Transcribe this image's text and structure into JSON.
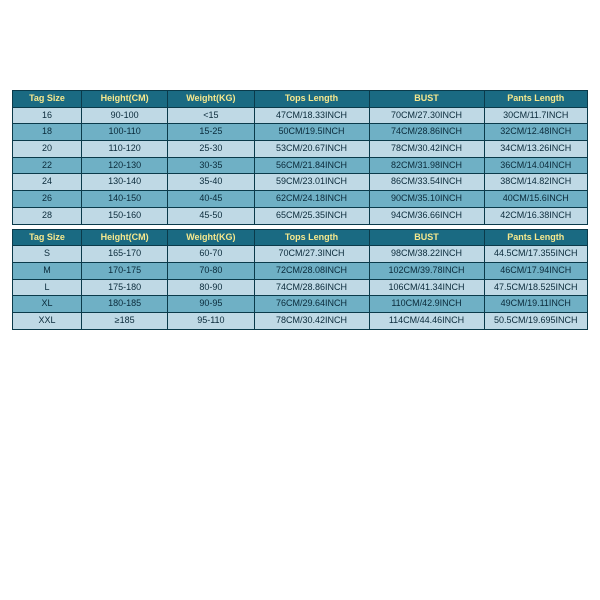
{
  "table1": {
    "headers": [
      "Tag Size",
      "Height(CM)",
      "Weight(KG)",
      "Tops Length",
      "BUST",
      "Pants Length"
    ],
    "header_colors": {
      "bg": "#1a6a82",
      "fg": "#f7e98e"
    },
    "row_light_bg": "#bfd9e5",
    "row_dark_bg": "#6fb0c5",
    "rows": [
      {
        "cells": [
          "16",
          "90-100",
          "<15",
          "47CM/18.33INCH",
          "70CM/27.30INCH",
          "30CM/11.7INCH"
        ],
        "dark": false
      },
      {
        "cells": [
          "18",
          "100-110",
          "15-25",
          "50CM/19.5INCH",
          "74CM/28.86INCH",
          "32CM/12.48INCH"
        ],
        "dark": true
      },
      {
        "cells": [
          "20",
          "110-120",
          "25-30",
          "53CM/20.67INCH",
          "78CM/30.42INCH",
          "34CM/13.26INCH"
        ],
        "dark": false
      },
      {
        "cells": [
          "22",
          "120-130",
          "30-35",
          "56CM/21.84INCH",
          "82CM/31.98INCH",
          "36CM/14.04INCH"
        ],
        "dark": true
      },
      {
        "cells": [
          "24",
          "130-140",
          "35-40",
          "59CM/23.01INCH",
          "86CM/33.54INCH",
          "38CM/14.82INCH"
        ],
        "dark": false
      },
      {
        "cells": [
          "26",
          "140-150",
          "40-45",
          "62CM/24.18INCH",
          "90CM/35.10INCH",
          "40CM/15.6INCH"
        ],
        "dark": true
      },
      {
        "cells": [
          "28",
          "150-160",
          "45-50",
          "65CM/25.35INCH",
          "94CM/36.66INCH",
          "42CM/16.38INCH"
        ],
        "dark": false
      }
    ]
  },
  "table2": {
    "headers": [
      "Tag Size",
      "Height(CM)",
      "Weight(KG)",
      "Tops Length",
      "BUST",
      "Pants Length"
    ],
    "header_colors": {
      "bg": "#1a6a82",
      "fg": "#f7e98e"
    },
    "row_light_bg": "#bfd9e5",
    "row_dark_bg": "#6fb0c5",
    "rows": [
      {
        "cells": [
          "S",
          "165-170",
          "60-70",
          "70CM/27.3INCH",
          "98CM/38.22INCH",
          "44.5CM/17.355INCH"
        ],
        "dark": false
      },
      {
        "cells": [
          "M",
          "170-175",
          "70-80",
          "72CM/28.08INCH",
          "102CM/39.78INCH",
          "46CM/17.94INCH"
        ],
        "dark": true
      },
      {
        "cells": [
          "L",
          "175-180",
          "80-90",
          "74CM/28.86INCH",
          "106CM/41.34INCH",
          "47.5CM/18.525INCH"
        ],
        "dark": false
      },
      {
        "cells": [
          "XL",
          "180-185",
          "90-95",
          "76CM/29.64INCH",
          "110CM/42.9INCH",
          "49CM/19.11INCH"
        ],
        "dark": true
      },
      {
        "cells": [
          "XXL",
          "≥185",
          "95-110",
          "78CM/30.42INCH",
          "114CM/44.46INCH",
          "50.5CM/19.695INCH"
        ],
        "dark": false
      }
    ]
  },
  "col_classes": [
    "col1",
    "col2",
    "col3",
    "col4",
    "col5",
    "col6"
  ]
}
